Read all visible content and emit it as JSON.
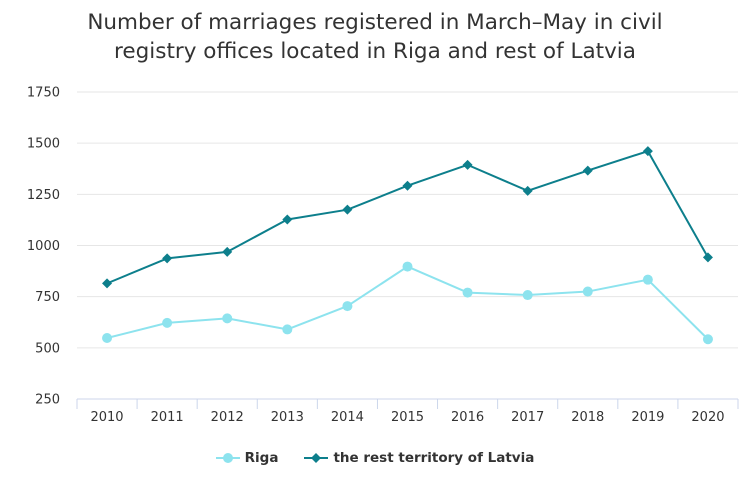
{
  "chart_data": {
    "type": "line",
    "title": "Number of marriages registered in March–May in civil registry offices located in Riga and rest of Latvia",
    "title_lines": [
      "Number of marriages registered in March–May in civil",
      "registry offices located in Riga and rest of Latvia"
    ],
    "x": [
      "2010",
      "2011",
      "2012",
      "2013",
      "2014",
      "2015",
      "2016",
      "2017",
      "2018",
      "2019",
      "2020"
    ],
    "ylim": [
      250,
      1750
    ],
    "yticks": [
      250,
      500,
      750,
      1000,
      1250,
      1500,
      1750
    ],
    "grid": true,
    "legend_position": "bottom",
    "series": [
      {
        "name": "Riga",
        "color": "#8de3ee",
        "marker": "circle",
        "values": [
          548,
          622,
          644,
          590,
          704,
          897,
          770,
          758,
          775,
          833,
          542
        ]
      },
      {
        "name": "the rest territory of Latvia",
        "color": "#0d7f8c",
        "marker": "diamond",
        "values": [
          815,
          937,
          969,
          1127,
          1175,
          1292,
          1394,
          1267,
          1366,
          1461,
          942
        ]
      }
    ]
  }
}
